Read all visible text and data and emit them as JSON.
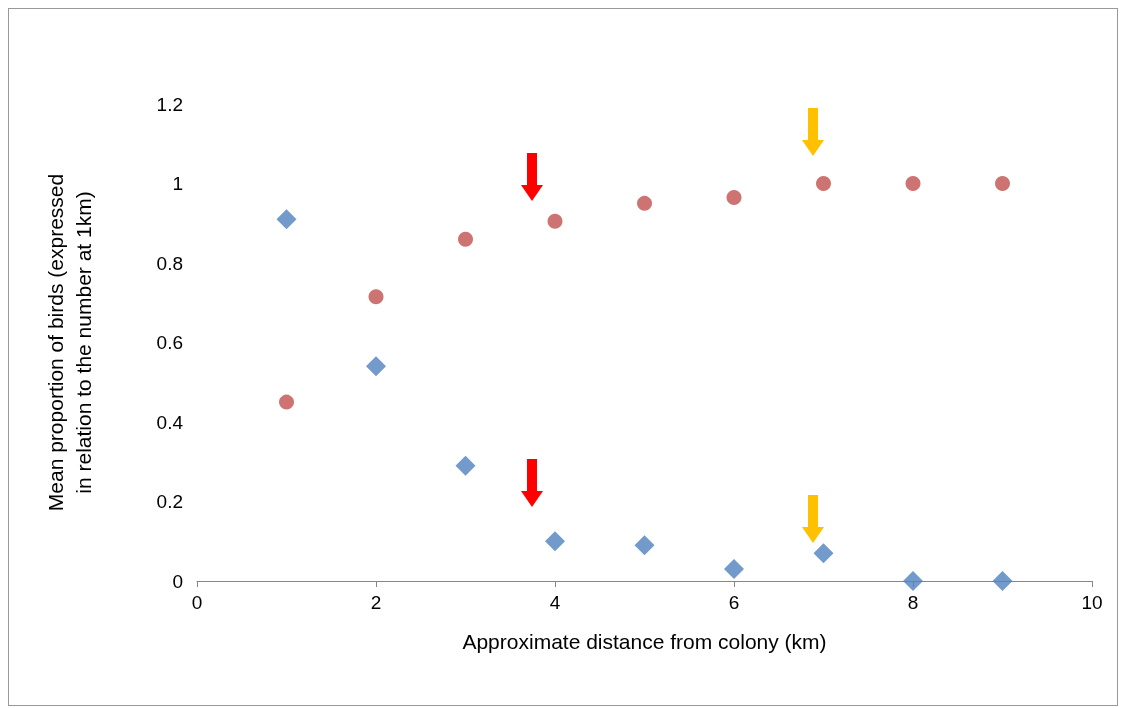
{
  "chart_data": {
    "type": "scatter",
    "xlabel": "Approximate distance from colony (km)",
    "ylabel": "Mean proportion of birds (expressed\nin relation to the number at 1km)",
    "xlim": [
      0,
      10
    ],
    "xticks": [
      0,
      2,
      4,
      6,
      8,
      10
    ],
    "ylim": [
      0,
      1.2
    ],
    "yticks": [
      0,
      0.2,
      0.4,
      0.6,
      0.8,
      1,
      1.2
    ],
    "grid": false,
    "series": [
      {
        "color": "#4f81bd",
        "marker": "diamond",
        "x": [
          1,
          2,
          3,
          4,
          5,
          6,
          7,
          8,
          9
        ],
        "values": [
          0.91,
          0.54,
          0.29,
          0.1,
          0.09,
          0.03,
          0.07,
          0,
          0
        ]
      },
      {
        "color": "#c0504d",
        "marker": "circle",
        "x": [
          1,
          2,
          3,
          4,
          5,
          6,
          7,
          8,
          9
        ],
        "values": [
          0.45,
          0.715,
          0.86,
          0.905,
          0.95,
          0.965,
          1,
          1,
          1
        ]
      }
    ]
  }
}
